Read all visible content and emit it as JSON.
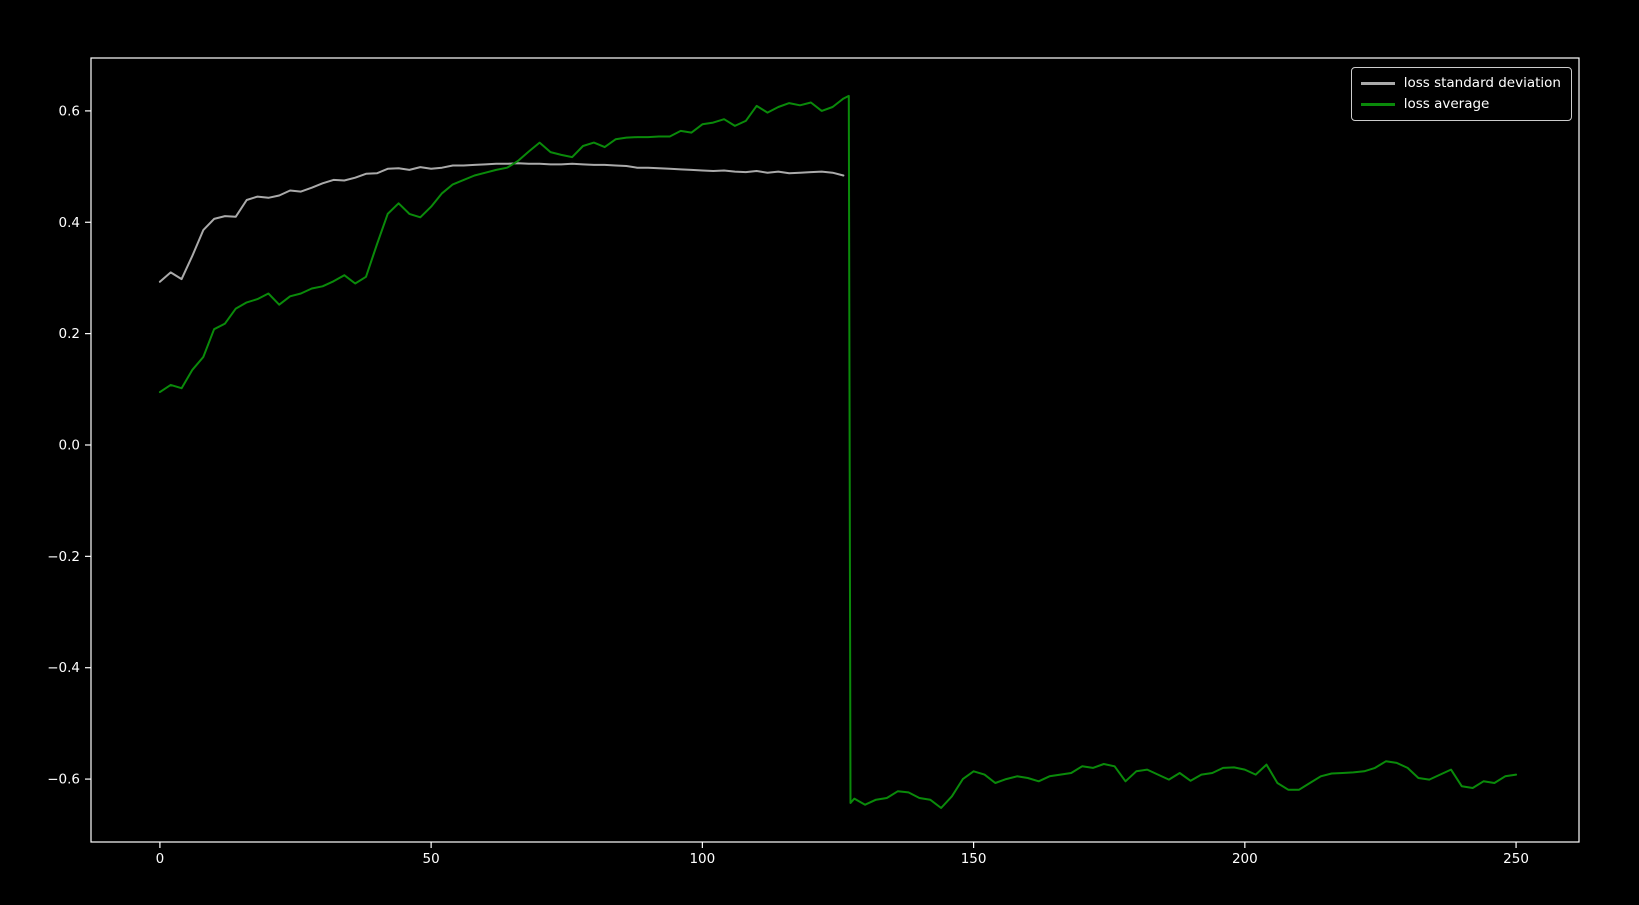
{
  "figure": {
    "background_color": "#000000",
    "axis_color": "#ffffff",
    "text_color": "#ffffff"
  },
  "legend": {
    "position": "upper right",
    "entries": [
      "loss standard deviation",
      "loss average"
    ]
  },
  "chart_data": {
    "type": "line",
    "title": "",
    "xlabel": "",
    "ylabel": "",
    "grid": false,
    "background": "#000000",
    "xlim": [
      -12.7,
      261.6
    ],
    "ylim": [
      -0.713,
      0.695
    ],
    "x_ticks": [
      {
        "v": 0,
        "label": "0"
      },
      {
        "v": 50,
        "label": "50"
      },
      {
        "v": 100,
        "label": "100"
      },
      {
        "v": 150,
        "label": "150"
      },
      {
        "v": 200,
        "label": "200"
      },
      {
        "v": 250,
        "label": "250"
      }
    ],
    "y_ticks": [
      {
        "v": 0.6,
        "label": "0.6"
      },
      {
        "v": 0.4,
        "label": "0.4"
      },
      {
        "v": 0.2,
        "label": "0.2"
      },
      {
        "v": 0.0,
        "label": "0.0"
      },
      {
        "v": -0.2,
        "label": "−0.2"
      },
      {
        "v": -0.4,
        "label": "−0.4"
      },
      {
        "v": -0.6,
        "label": "−0.6"
      }
    ],
    "legend_position": "upper right",
    "series": [
      {
        "id": "loss-standard-deviation",
        "name": "loss standard deviation",
        "color": "#aaaaaa",
        "points": [
          [
            0,
            0.293
          ],
          [
            2,
            0.31
          ],
          [
            4,
            0.298
          ],
          [
            6,
            0.34
          ],
          [
            8,
            0.386
          ],
          [
            10,
            0.406
          ],
          [
            12,
            0.411
          ],
          [
            14,
            0.41
          ],
          [
            16,
            0.44
          ],
          [
            18,
            0.446
          ],
          [
            20,
            0.444
          ],
          [
            22,
            0.448
          ],
          [
            24,
            0.457
          ],
          [
            26,
            0.455
          ],
          [
            28,
            0.462
          ],
          [
            30,
            0.47
          ],
          [
            32,
            0.476
          ],
          [
            34,
            0.475
          ],
          [
            36,
            0.48
          ],
          [
            38,
            0.487
          ],
          [
            40,
            0.488
          ],
          [
            42,
            0.496
          ],
          [
            44,
            0.497
          ],
          [
            46,
            0.494
          ],
          [
            48,
            0.499
          ],
          [
            50,
            0.496
          ],
          [
            52,
            0.498
          ],
          [
            54,
            0.502
          ],
          [
            56,
            0.502
          ],
          [
            58,
            0.503
          ],
          [
            60,
            0.504
          ],
          [
            62,
            0.505
          ],
          [
            64,
            0.505
          ],
          [
            66,
            0.506
          ],
          [
            68,
            0.505
          ],
          [
            70,
            0.505
          ],
          [
            72,
            0.504
          ],
          [
            74,
            0.504
          ],
          [
            76,
            0.505
          ],
          [
            78,
            0.504
          ],
          [
            80,
            0.503
          ],
          [
            82,
            0.503
          ],
          [
            84,
            0.502
          ],
          [
            86,
            0.501
          ],
          [
            88,
            0.498
          ],
          [
            90,
            0.498
          ],
          [
            92,
            0.497
          ],
          [
            94,
            0.496
          ],
          [
            96,
            0.495
          ],
          [
            98,
            0.494
          ],
          [
            100,
            0.493
          ],
          [
            102,
            0.492
          ],
          [
            104,
            0.493
          ],
          [
            106,
            0.491
          ],
          [
            108,
            0.49
          ],
          [
            110,
            0.492
          ],
          [
            112,
            0.489
          ],
          [
            114,
            0.491
          ],
          [
            116,
            0.488
          ],
          [
            118,
            0.489
          ],
          [
            120,
            0.49
          ],
          [
            122,
            0.491
          ],
          [
            124,
            0.489
          ],
          [
            126,
            0.484
          ]
        ]
      },
      {
        "id": "loss-average",
        "name": "loss average",
        "color": "#0a8a0a",
        "points": [
          [
            0,
            0.095
          ],
          [
            2,
            0.108
          ],
          [
            4,
            0.102
          ],
          [
            6,
            0.135
          ],
          [
            8,
            0.158
          ],
          [
            10,
            0.208
          ],
          [
            12,
            0.218
          ],
          [
            14,
            0.245
          ],
          [
            16,
            0.256
          ],
          [
            18,
            0.262
          ],
          [
            20,
            0.272
          ],
          [
            22,
            0.252
          ],
          [
            24,
            0.267
          ],
          [
            26,
            0.272
          ],
          [
            28,
            0.281
          ],
          [
            30,
            0.285
          ],
          [
            32,
            0.294
          ],
          [
            34,
            0.305
          ],
          [
            36,
            0.29
          ],
          [
            38,
            0.302
          ],
          [
            40,
            0.36
          ],
          [
            42,
            0.415
          ],
          [
            44,
            0.434
          ],
          [
            46,
            0.415
          ],
          [
            48,
            0.409
          ],
          [
            50,
            0.428
          ],
          [
            52,
            0.452
          ],
          [
            54,
            0.468
          ],
          [
            56,
            0.476
          ],
          [
            58,
            0.484
          ],
          [
            60,
            0.489
          ],
          [
            62,
            0.494
          ],
          [
            64,
            0.498
          ],
          [
            66,
            0.51
          ],
          [
            68,
            0.527
          ],
          [
            70,
            0.543
          ],
          [
            72,
            0.526
          ],
          [
            74,
            0.521
          ],
          [
            76,
            0.517
          ],
          [
            78,
            0.537
          ],
          [
            80,
            0.543
          ],
          [
            82,
            0.535
          ],
          [
            84,
            0.549
          ],
          [
            86,
            0.552
          ],
          [
            88,
            0.553
          ],
          [
            90,
            0.553
          ],
          [
            92,
            0.554
          ],
          [
            94,
            0.554
          ],
          [
            96,
            0.564
          ],
          [
            98,
            0.561
          ],
          [
            100,
            0.576
          ],
          [
            102,
            0.579
          ],
          [
            104,
            0.585
          ],
          [
            106,
            0.573
          ],
          [
            108,
            0.582
          ],
          [
            110,
            0.609
          ],
          [
            112,
            0.597
          ],
          [
            114,
            0.607
          ],
          [
            116,
            0.614
          ],
          [
            118,
            0.61
          ],
          [
            120,
            0.615
          ],
          [
            122,
            0.6
          ],
          [
            124,
            0.607
          ],
          [
            126,
            0.622
          ],
          [
            127,
            0.627
          ],
          [
            127.3,
            -0.643
          ],
          [
            128,
            -0.635
          ],
          [
            130,
            -0.646
          ],
          [
            132,
            -0.637
          ],
          [
            134,
            -0.634
          ],
          [
            136,
            -0.622
          ],
          [
            138,
            -0.624
          ],
          [
            140,
            -0.634
          ],
          [
            142,
            -0.637
          ],
          [
            144,
            -0.652
          ],
          [
            146,
            -0.631
          ],
          [
            148,
            -0.6
          ],
          [
            150,
            -0.586
          ],
          [
            152,
            -0.592
          ],
          [
            154,
            -0.607
          ],
          [
            156,
            -0.6
          ],
          [
            158,
            -0.595
          ],
          [
            160,
            -0.598
          ],
          [
            162,
            -0.604
          ],
          [
            164,
            -0.595
          ],
          [
            166,
            -0.592
          ],
          [
            168,
            -0.589
          ],
          [
            170,
            -0.577
          ],
          [
            172,
            -0.58
          ],
          [
            174,
            -0.573
          ],
          [
            176,
            -0.577
          ],
          [
            178,
            -0.604
          ],
          [
            180,
            -0.586
          ],
          [
            182,
            -0.583
          ],
          [
            184,
            -0.592
          ],
          [
            186,
            -0.601
          ],
          [
            188,
            -0.589
          ],
          [
            190,
            -0.603
          ],
          [
            192,
            -0.592
          ],
          [
            194,
            -0.589
          ],
          [
            196,
            -0.58
          ],
          [
            198,
            -0.579
          ],
          [
            200,
            -0.583
          ],
          [
            202,
            -0.592
          ],
          [
            204,
            -0.574
          ],
          [
            206,
            -0.607
          ],
          [
            208,
            -0.619
          ],
          [
            210,
            -0.619
          ],
          [
            212,
            -0.607
          ],
          [
            214,
            -0.595
          ],
          [
            216,
            -0.59
          ],
          [
            218,
            -0.589
          ],
          [
            220,
            -0.588
          ],
          [
            222,
            -0.586
          ],
          [
            224,
            -0.58
          ],
          [
            226,
            -0.568
          ],
          [
            228,
            -0.571
          ],
          [
            230,
            -0.58
          ],
          [
            232,
            -0.598
          ],
          [
            234,
            -0.601
          ],
          [
            236,
            -0.592
          ],
          [
            238,
            -0.583
          ],
          [
            240,
            -0.613
          ],
          [
            242,
            -0.616
          ],
          [
            244,
            -0.604
          ],
          [
            246,
            -0.607
          ],
          [
            248,
            -0.595
          ],
          [
            250,
            -0.592
          ]
        ]
      }
    ]
  }
}
